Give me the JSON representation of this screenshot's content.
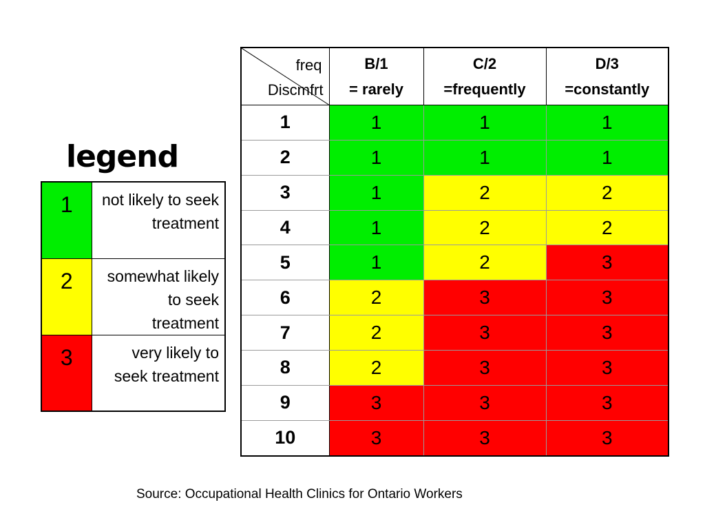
{
  "legend": {
    "title": "legend",
    "items": [
      {
        "value": "1",
        "text": "not likely to seek treatment",
        "color": "#00ee00"
      },
      {
        "value": "2",
        "text": "somewhat likely to seek treatment",
        "color": "#ffff00"
      },
      {
        "value": "3",
        "text": "very likely to seek treatment",
        "color": "#ff0000"
      }
    ]
  },
  "matrix": {
    "corner": {
      "freq": "freq",
      "discomfort": "Discmfrt"
    },
    "columns": [
      {
        "line1": "B/1",
        "line2": "= rarely"
      },
      {
        "line1": "C/2",
        "line2": "=frequently"
      },
      {
        "line1": "D/3",
        "line2": "=constantly"
      }
    ],
    "rows": [
      {
        "label": "1",
        "values": [
          "1",
          "1",
          "1"
        ]
      },
      {
        "label": "2",
        "values": [
          "1",
          "1",
          "1"
        ]
      },
      {
        "label": "3",
        "values": [
          "1",
          "2",
          "2"
        ]
      },
      {
        "label": "4",
        "values": [
          "1",
          "2",
          "2"
        ]
      },
      {
        "label": "5",
        "values": [
          "1",
          "2",
          "3"
        ]
      },
      {
        "label": "6",
        "values": [
          "2",
          "3",
          "3"
        ]
      },
      {
        "label": "7",
        "values": [
          "2",
          "3",
          "3"
        ]
      },
      {
        "label": "8",
        "values": [
          "2",
          "3",
          "3"
        ]
      },
      {
        "label": "9",
        "values": [
          "3",
          "3",
          "3"
        ]
      },
      {
        "label": "10",
        "values": [
          "3",
          "3",
          "3"
        ]
      }
    ]
  },
  "source": "Source: Occupational Health Clinics for Ontario Workers"
}
